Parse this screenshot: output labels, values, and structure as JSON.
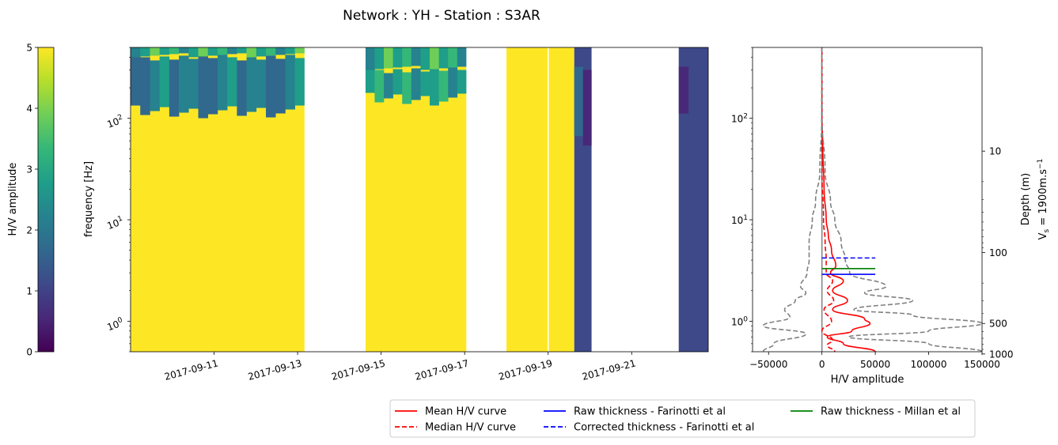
{
  "figure": {
    "title": "Network : YH - Station : S3AR"
  },
  "colors": {
    "viridis": [
      "#440154",
      "#482878",
      "#3e4989",
      "#31688e",
      "#26828e",
      "#1f9e89",
      "#35b779",
      "#6ece58",
      "#b5de2b",
      "#fde725"
    ],
    "mean": "#ff0000",
    "median": "#ff0000",
    "farinotti": "#0000ff",
    "millan": "#008000",
    "envelope": "#808080",
    "empty": "#ffffff"
  },
  "colorbar": {
    "label": "H/V amplitude",
    "ticks": [
      "0",
      "1",
      "2",
      "3",
      "4",
      "5"
    ]
  },
  "spectrogram": {
    "ylabel": "frequency [Hz]",
    "yticks": [
      {
        "m": "10",
        "e": "0"
      },
      {
        "m": "10",
        "e": "1"
      },
      {
        "m": "10",
        "e": "2"
      }
    ],
    "xticks": [
      "2017-09-11",
      "2017-09-13",
      "2017-09-15",
      "2017-09-17",
      "2017-09-19",
      "2017-09-21"
    ]
  },
  "hv": {
    "xlabel": "H/V amplitude",
    "xticks": [
      "−50000",
      "0",
      "50000",
      "100000",
      "150000"
    ],
    "yticks": [
      {
        "m": "10",
        "e": "0"
      },
      {
        "m": "10",
        "e": "1"
      },
      {
        "m": "10",
        "e": "2"
      }
    ],
    "depth_label": "Depth (m)",
    "vs_label": "V",
    "vs_sub": "s",
    "vs_value": " = 1900m.s",
    "vs_sup": "−1",
    "depth_ticks": [
      "10",
      "100",
      "500",
      "1000"
    ]
  },
  "legend": {
    "mean": "Mean H/V curve",
    "median": "Median H/V curve",
    "raw_farinotti": "Raw thickness - Farinotti et al",
    "corr_farinotti": "Corrected thickness - Farinotti et al",
    "raw_millan": "Raw thickness - Millan et al"
  },
  "chart_data": [
    {
      "type": "heatmap",
      "title": "Network : YH - Station : S3AR",
      "xlabel": "",
      "ylabel": "frequency [Hz]",
      "y_scale": "log",
      "ylim": [
        0.5,
        500
      ],
      "xlim": [
        "2017-09-09T00:00",
        "2017-09-22T20:00"
      ],
      "clim": [
        0,
        5
      ],
      "colormap": "viridis",
      "colorbar_label": "H/V amplitude",
      "empty_spans": [
        [
          "2017-09-13T04:00",
          "2017-09-13T06:00"
        ],
        [
          "2017-09-13T07:00",
          "2017-09-13T14:00"
        ],
        [
          "2017-09-13T14:40",
          "2017-09-14T00:00"
        ],
        [
          "2017-09-14T01:00",
          "2017-09-14T15:00"
        ],
        [
          "2017-09-17T01:00",
          "2017-09-17T02:00"
        ],
        [
          "2017-09-17T03:00",
          "2017-09-18T00:00"
        ],
        [
          "2017-09-18T23:40",
          "2017-09-19T00:20"
        ],
        [
          "2017-09-20T01:00",
          "2017-09-22T03:00"
        ]
      ],
      "segments": [
        {
          "start": "2017-09-09T00:00",
          "end": "2017-09-13T04:00",
          "base": 4.9,
          "band": [
            120,
            400
          ],
          "band_value": 1.6
        },
        {
          "start": "2017-09-14T15:00",
          "end": "2017-09-17T01:00",
          "base": 4.95,
          "band": [
            160,
            300
          ],
          "band_value": 2.2
        },
        {
          "start": "2017-09-18T00:00",
          "end": "2017-09-19T15:00",
          "base": 4.9,
          "band": null,
          "band_value": null
        },
        {
          "start": "2017-09-19T15:00",
          "end": "2017-09-20T01:00",
          "base": 1.2,
          "band": [
            60,
            300
          ],
          "band_value": 0.6
        },
        {
          "start": "2017-09-22T03:00",
          "end": "2017-09-22T20:00",
          "base": 1.3,
          "band": [
            100,
            300
          ],
          "band_value": 0.3
        }
      ]
    },
    {
      "type": "line",
      "xlabel": "H/V amplitude",
      "ylabel": "",
      "y_scale": "log",
      "ylim": [
        0.5,
        500
      ],
      "xlim": [
        -65000,
        150000
      ],
      "secondary_y": {
        "label": "Depth (m)",
        "ticks": [
          10,
          100,
          500,
          1000
        ]
      },
      "series": [
        {
          "name": "Mean H/V curve",
          "style": "solid",
          "color": "#ff0000",
          "points": [
            [
              0,
              500
            ],
            [
              0,
              100
            ],
            [
              800,
              50
            ],
            [
              2000,
              20
            ],
            [
              4000,
              10
            ],
            [
              6000,
              7
            ],
            [
              9000,
              5
            ],
            [
              13000,
              3.5
            ],
            [
              8000,
              3
            ],
            [
              20000,
              2.5
            ],
            [
              10000,
              2
            ],
            [
              24000,
              1.6
            ],
            [
              10000,
              1.3
            ],
            [
              40000,
              1.05
            ],
            [
              45000,
              0.95
            ],
            [
              28000,
              0.8
            ],
            [
              5000,
              0.7
            ],
            [
              20000,
              0.6
            ],
            [
              50000,
              0.5
            ]
          ]
        },
        {
          "name": "Median H/V curve",
          "style": "dashed",
          "color": "#ff0000",
          "points": [
            [
              0,
              500
            ],
            [
              0,
              30
            ],
            [
              1500,
              10
            ],
            [
              3000,
              6
            ],
            [
              4000,
              4
            ],
            [
              4000,
              3.5
            ],
            [
              4000,
              3
            ],
            [
              10000,
              2.5
            ],
            [
              5000,
              2
            ],
            [
              11000,
              1.6
            ],
            [
              2000,
              1.3
            ],
            [
              9000,
              1.0
            ],
            [
              0,
              0.8
            ],
            [
              10000,
              0.65
            ],
            [
              5000,
              0.58
            ],
            [
              12000,
              0.5
            ]
          ]
        },
        {
          "name": "Envelope lower",
          "style": "dashed",
          "color": "#808080",
          "points": [
            [
              0,
              500
            ],
            [
              -200,
              100
            ],
            [
              -2000,
              30
            ],
            [
              -6000,
              15
            ],
            [
              -9000,
              10
            ],
            [
              -12000,
              6
            ],
            [
              -12000,
              4
            ],
            [
              -14000,
              3
            ],
            [
              -20000,
              2.2
            ],
            [
              -15000,
              1.9
            ],
            [
              -25000,
              1.6
            ],
            [
              -35000,
              1.3
            ],
            [
              -30000,
              1.1
            ],
            [
              -55000,
              0.9
            ],
            [
              -15000,
              0.75
            ],
            [
              -45000,
              0.6
            ],
            [
              -55000,
              0.5
            ]
          ]
        },
        {
          "name": "Envelope upper",
          "style": "dashed",
          "color": "#808080",
          "points": [
            [
              0,
              500
            ],
            [
              200,
              100
            ],
            [
              3000,
              30
            ],
            [
              8000,
              15
            ],
            [
              12000,
              10
            ],
            [
              18000,
              6
            ],
            [
              22000,
              4
            ],
            [
              26000,
              3
            ],
            [
              60000,
              2.2
            ],
            [
              40000,
              1.9
            ],
            [
              85000,
              1.6
            ],
            [
              30000,
              1.3
            ],
            [
              85000,
              1.15
            ],
            [
              150000,
              0.95
            ],
            [
              100000,
              0.8
            ],
            [
              25000,
              0.7
            ],
            [
              100000,
              0.6
            ],
            [
              150000,
              0.5
            ]
          ]
        },
        {
          "name": "Raw thickness - Farinotti et al",
          "style": "solid",
          "color": "#0000ff",
          "x": [
            0,
            50000
          ],
          "y": 2.9
        },
        {
          "name": "Corrected thickness - Farinotti et al",
          "style": "dashed",
          "color": "#0000ff",
          "x": [
            0,
            50000
          ],
          "y": 4.2
        },
        {
          "name": "Raw thickness - Millan et al",
          "style": "solid",
          "color": "#008000",
          "x": [
            0,
            50000
          ],
          "y": 3.3
        }
      ]
    }
  ]
}
